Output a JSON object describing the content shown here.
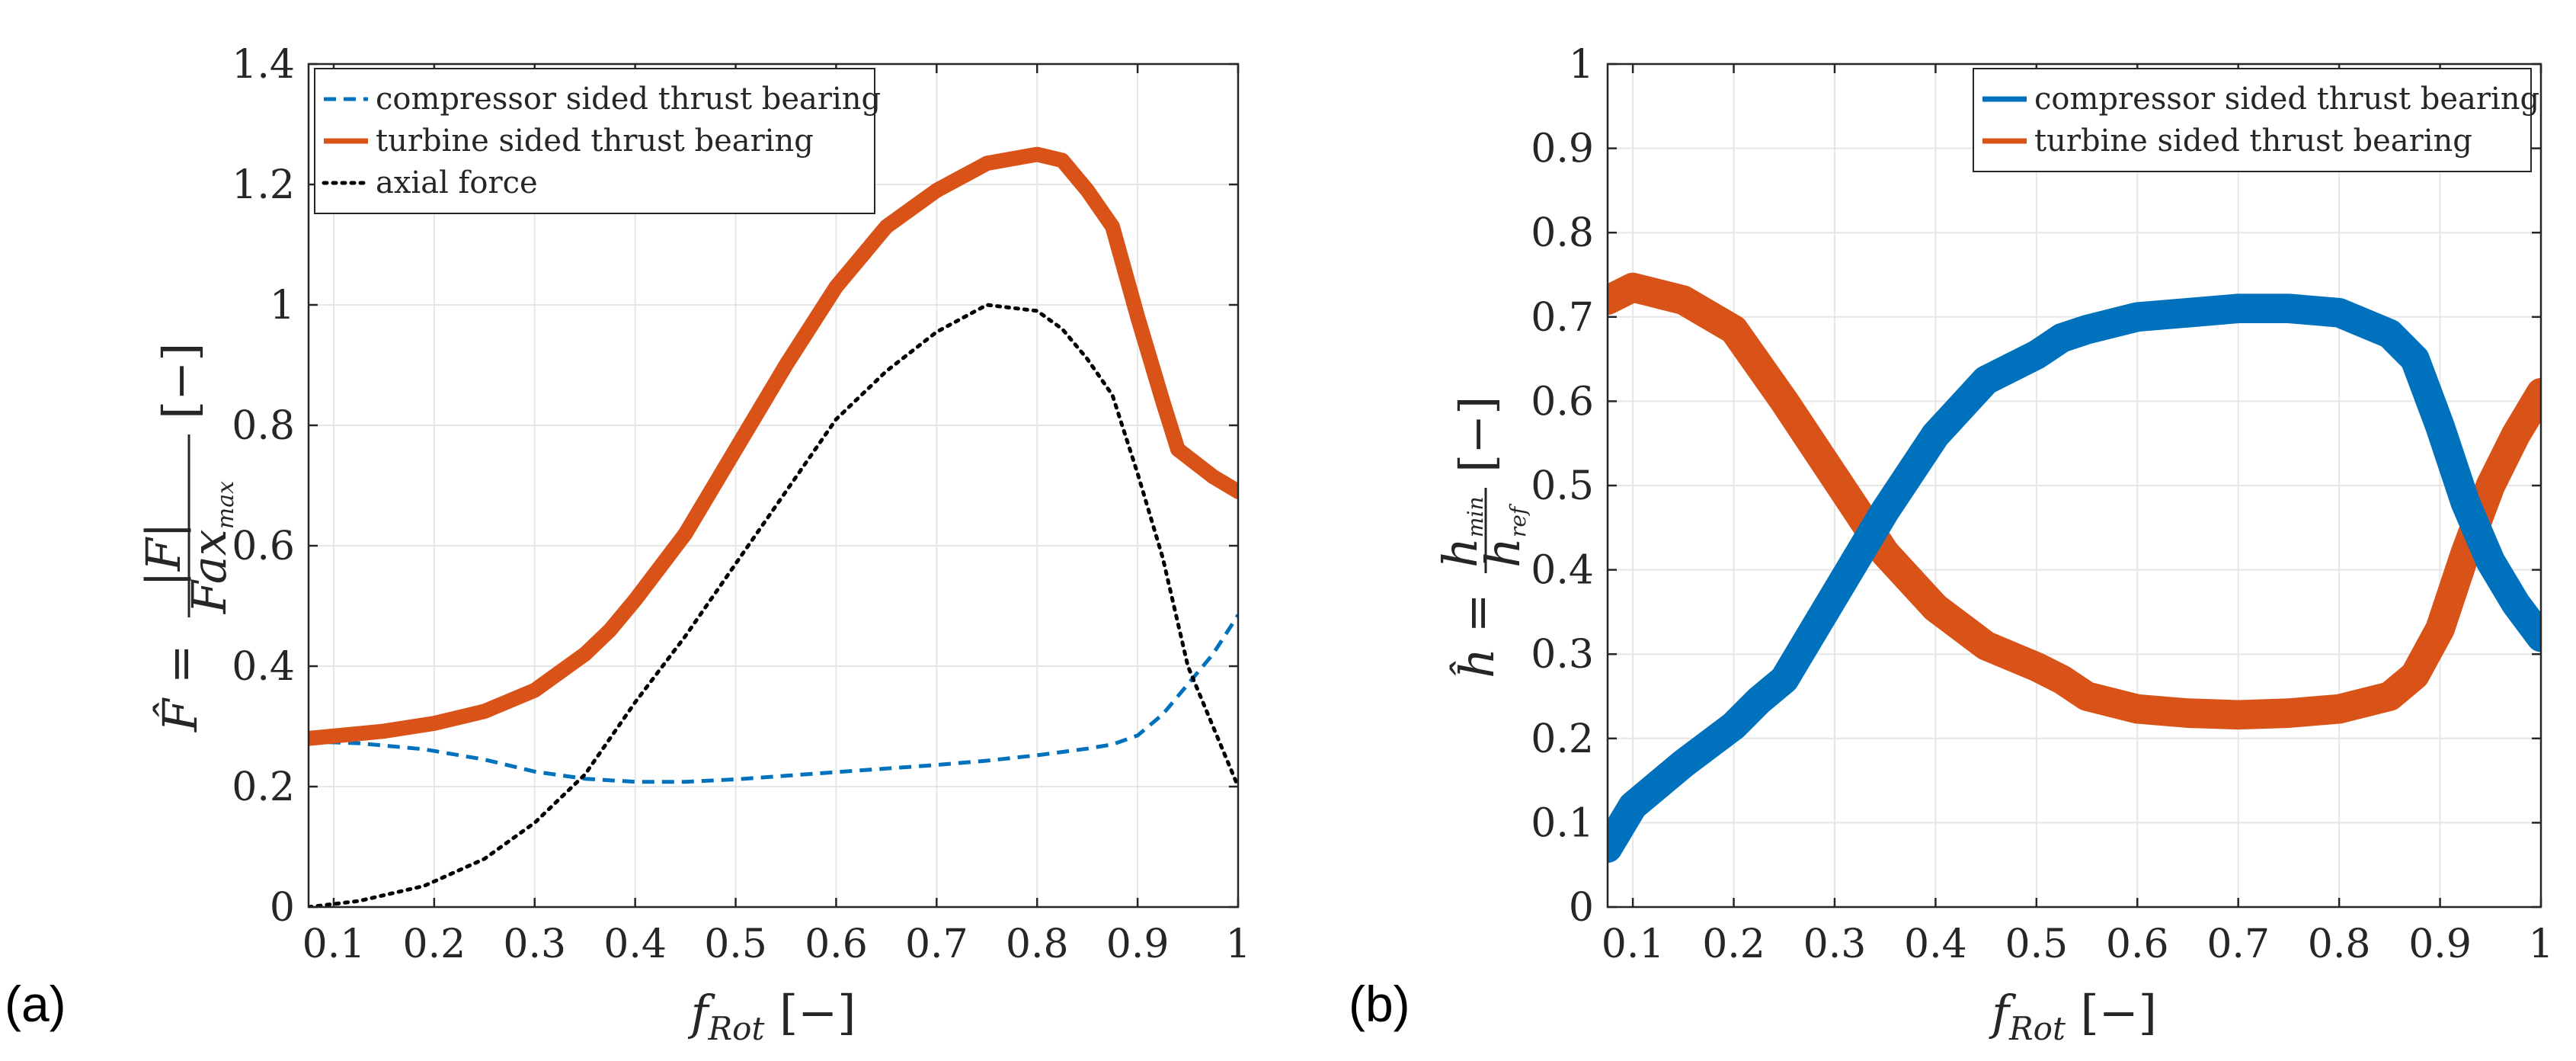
{
  "chart_data": [
    {
      "type": "line",
      "panel_label": "(a)",
      "xlabel": "f_Rot [−]",
      "ylabel": "F̂ = |F| / Fax_max [−]",
      "xlim": [
        0.075,
        1.0
      ],
      "ylim": [
        0,
        1.4
      ],
      "xticks": [
        "0.1",
        "0.2",
        "0.3",
        "0.4",
        "0.5",
        "0.6",
        "0.7",
        "0.8",
        "0.9",
        "1"
      ],
      "yticks": [
        "0",
        "0.2",
        "0.4",
        "0.6",
        "0.8",
        "1",
        "1.2",
        "1.4"
      ],
      "grid": true,
      "legend_position": "top-left",
      "series": [
        {
          "name": "compressor sided thrust bearing",
          "color": "#0072BD",
          "style": "dashed",
          "x": [
            0.075,
            0.125,
            0.19,
            0.25,
            0.3,
            0.35,
            0.4,
            0.45,
            0.5,
            0.55,
            0.6,
            0.65,
            0.7,
            0.75,
            0.8,
            0.85,
            0.875,
            0.9,
            0.925,
            0.95,
            0.975,
            1.0
          ],
          "y": [
            0.275,
            0.272,
            0.262,
            0.245,
            0.225,
            0.213,
            0.208,
            0.208,
            0.212,
            0.218,
            0.224,
            0.23,
            0.236,
            0.243,
            0.252,
            0.263,
            0.27,
            0.285,
            0.32,
            0.37,
            0.42,
            0.485
          ]
        },
        {
          "name": "turbine sided thrust bearing",
          "color": "#D95319",
          "style": "solid",
          "band": 0.025,
          "x": [
            0.075,
            0.15,
            0.2,
            0.25,
            0.3,
            0.35,
            0.375,
            0.4,
            0.45,
            0.5,
            0.55,
            0.6,
            0.65,
            0.7,
            0.75,
            0.8,
            0.825,
            0.85,
            0.875,
            0.9,
            0.925,
            0.94,
            0.975,
            1.0
          ],
          "y": [
            0.28,
            0.292,
            0.305,
            0.325,
            0.36,
            0.42,
            0.46,
            0.51,
            0.62,
            0.76,
            0.9,
            1.03,
            1.13,
            1.19,
            1.235,
            1.25,
            1.24,
            1.19,
            1.13,
            0.98,
            0.84,
            0.76,
            0.715,
            0.69
          ]
        },
        {
          "name": "axial force",
          "color": "#000000",
          "style": "dotted",
          "x": [
            0.075,
            0.125,
            0.19,
            0.25,
            0.3,
            0.35,
            0.4,
            0.45,
            0.5,
            0.55,
            0.6,
            0.65,
            0.7,
            0.75,
            0.8,
            0.825,
            0.85,
            0.875,
            0.9,
            0.925,
            0.95,
            0.975,
            1.0
          ],
          "y": [
            0.0,
            0.01,
            0.035,
            0.08,
            0.14,
            0.22,
            0.34,
            0.45,
            0.57,
            0.69,
            0.81,
            0.89,
            0.955,
            1.0,
            0.99,
            0.96,
            0.91,
            0.85,
            0.72,
            0.58,
            0.4,
            0.3,
            0.2
          ]
        }
      ]
    },
    {
      "type": "line",
      "panel_label": "(b)",
      "xlabel": "f_Rot [−]",
      "ylabel": "ĥ = h_min / h_ref [−]",
      "xlim": [
        0.075,
        1.0
      ],
      "ylim": [
        0,
        1
      ],
      "xticks": [
        "0.1",
        "0.2",
        "0.3",
        "0.4",
        "0.5",
        "0.6",
        "0.7",
        "0.8",
        "0.9",
        "1"
      ],
      "yticks": [
        "0",
        "0.1",
        "0.2",
        "0.3",
        "0.4",
        "0.5",
        "0.6",
        "0.7",
        "0.8",
        "0.9",
        "1"
      ],
      "grid": true,
      "legend_position": "top-right",
      "series": [
        {
          "name": "compressor sided thrust bearing",
          "color": "#0072BD",
          "style": "solid",
          "band": 0.035,
          "x": [
            0.075,
            0.1,
            0.15,
            0.2,
            0.225,
            0.25,
            0.275,
            0.3,
            0.35,
            0.4,
            0.45,
            0.5,
            0.525,
            0.55,
            0.6,
            0.65,
            0.7,
            0.75,
            0.8,
            0.85,
            0.875,
            0.9,
            0.925,
            0.95,
            0.975,
            1.0
          ],
          "y": [
            0.07,
            0.12,
            0.17,
            0.215,
            0.245,
            0.27,
            0.32,
            0.37,
            0.47,
            0.56,
            0.625,
            0.655,
            0.675,
            0.685,
            0.7,
            0.705,
            0.71,
            0.71,
            0.705,
            0.68,
            0.65,
            0.57,
            0.48,
            0.41,
            0.36,
            0.32
          ]
        },
        {
          "name": "turbine sided thrust bearing",
          "color": "#D95319",
          "style": "solid",
          "band": 0.035,
          "x": [
            0.075,
            0.1,
            0.15,
            0.2,
            0.25,
            0.3,
            0.35,
            0.4,
            0.45,
            0.5,
            0.525,
            0.55,
            0.6,
            0.65,
            0.7,
            0.75,
            0.8,
            0.85,
            0.875,
            0.9,
            0.925,
            0.95,
            0.975,
            1.0
          ],
          "y": [
            0.72,
            0.735,
            0.72,
            0.685,
            0.6,
            0.51,
            0.42,
            0.355,
            0.31,
            0.285,
            0.27,
            0.25,
            0.235,
            0.23,
            0.228,
            0.23,
            0.235,
            0.25,
            0.275,
            0.33,
            0.42,
            0.5,
            0.56,
            0.61
          ]
        }
      ]
    }
  ]
}
